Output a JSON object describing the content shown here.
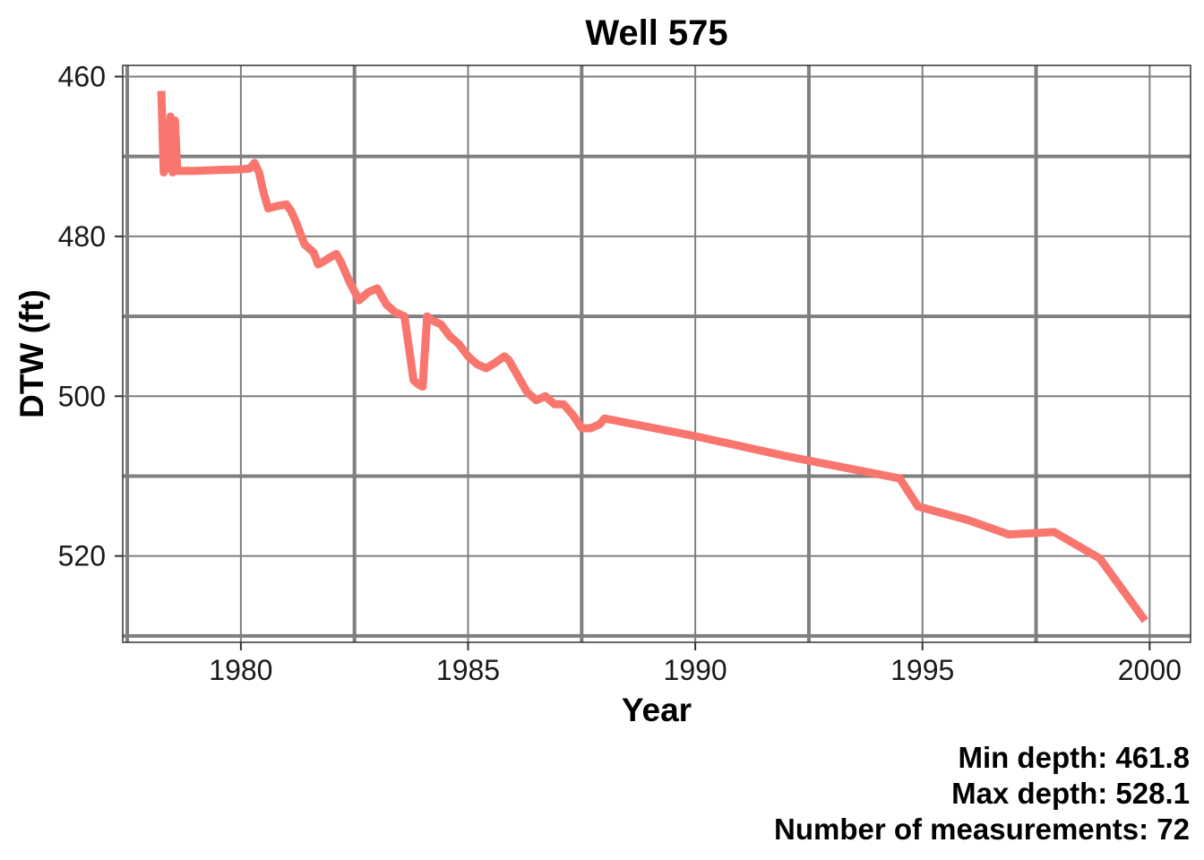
{
  "chart_data": {
    "type": "line",
    "title": "Well 575",
    "xlabel": "Year",
    "ylabel": "DTW (ft)",
    "xlim": [
      1977.4,
      2000.9
    ],
    "ylim": [
      530.8,
      458.6
    ],
    "y_reversed": true,
    "x_ticks": [
      1980,
      1985,
      1990,
      1995,
      2000
    ],
    "x_tick_labels": [
      "1980",
      "1985",
      "1990",
      "1995",
      "2000"
    ],
    "y_ticks": [
      460,
      480,
      500,
      520
    ],
    "y_tick_labels": [
      "460",
      "480",
      "500",
      "520"
    ],
    "grid": true,
    "series": [
      {
        "color": "#f8766d",
        "x": [
          1978.25,
          1978.3,
          1978.33,
          1978.4,
          1978.45,
          1978.5,
          1978.55,
          1978.6,
          1979.0,
          1979.5,
          1980.0,
          1980.2,
          1980.3,
          1980.4,
          1980.5,
          1980.6,
          1980.8,
          1981.0,
          1981.1,
          1981.2,
          1981.3,
          1981.4,
          1981.6,
          1981.7,
          1981.8,
          1982.0,
          1982.1,
          1982.2,
          1982.3,
          1982.4,
          1982.6,
          1982.8,
          1983.0,
          1983.2,
          1983.4,
          1983.6,
          1983.7,
          1983.8,
          1983.9,
          1984.0,
          1984.1,
          1984.2,
          1984.4,
          1984.6,
          1984.8,
          1985.0,
          1985.2,
          1985.4,
          1985.6,
          1985.8,
          1985.9,
          1986.1,
          1986.3,
          1986.5,
          1986.7,
          1986.9,
          1987.1,
          1987.3,
          1987.5,
          1987.7,
          1987.9,
          1988.0,
          1988.2,
          1990.0,
          1992.0,
          1994.5,
          1994.9,
          1996.0,
          1996.9,
          1997.9,
          1998.9,
          1999.9
        ],
        "y": [
          461.8,
          472.0,
          467.0,
          471.5,
          465.0,
          472.0,
          465.5,
          471.8,
          471.8,
          471.7,
          471.6,
          471.5,
          470.8,
          472.0,
          474.5,
          476.5,
          476.2,
          476.0,
          476.8,
          478.0,
          479.5,
          481.0,
          482.0,
          483.5,
          483.2,
          482.5,
          482.2,
          483.2,
          484.5,
          485.8,
          488.0,
          487.0,
          486.5,
          488.5,
          489.5,
          490.0,
          494.0,
          498.0,
          498.5,
          498.8,
          490.0,
          490.5,
          491.0,
          492.5,
          493.5,
          495.0,
          496.0,
          496.5,
          495.8,
          495.0,
          495.5,
          497.5,
          499.5,
          500.5,
          500.0,
          501.0,
          501.0,
          502.3,
          504.0,
          504.0,
          503.5,
          502.8,
          503.0,
          505.0,
          507.5,
          510.3,
          513.8,
          515.5,
          517.3,
          517.0,
          520.3,
          528.1
        ]
      }
    ],
    "annotations": {
      "min_depth": "Min depth: 461.8",
      "max_depth": "Max depth: 528.1",
      "n_measurements": "Number of measurements: 72"
    }
  }
}
